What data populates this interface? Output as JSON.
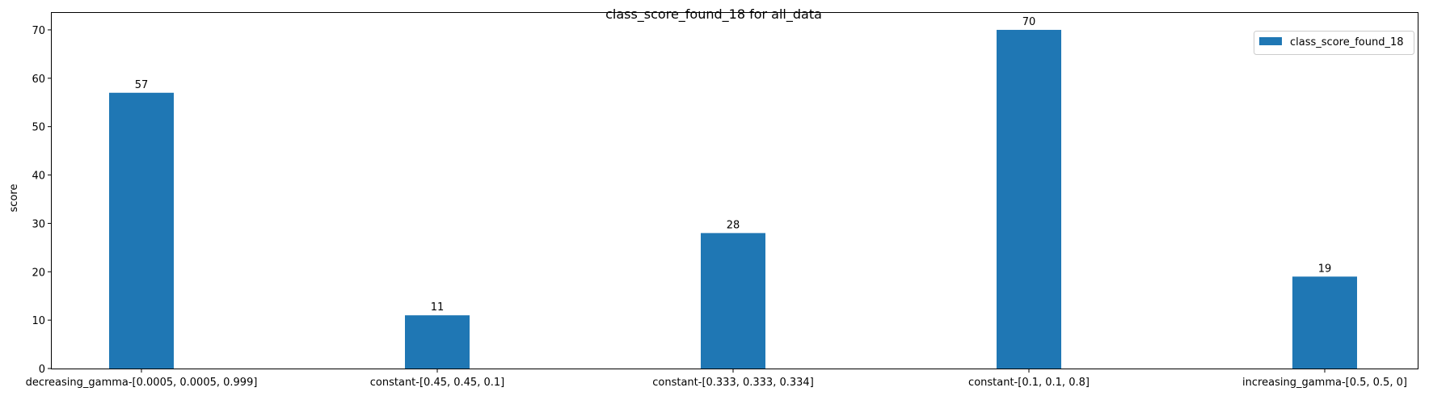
{
  "chart_data": {
    "type": "bar",
    "title": "class_score_found_18 for all_data",
    "xlabel": "",
    "ylabel": "score",
    "categories": [
      "decreasing_gamma-[0.0005, 0.0005, 0.999]",
      "constant-[0.45, 0.45, 0.1]",
      "constant-[0.333, 0.333, 0.334]",
      "constant-[0.1, 0.1, 0.8]",
      "increasing_gamma-[0.5, 0.5, 0]"
    ],
    "series": [
      {
        "name": "class_score_found_18",
        "values": [
          57,
          11,
          28,
          70,
          19
        ],
        "color": "#1f77b4"
      }
    ],
    "ylim": [
      0,
      73.5
    ],
    "yticks": [
      0,
      10,
      20,
      30,
      40,
      50,
      60,
      70
    ],
    "grid": false,
    "legend_position": "top-right",
    "data_labels": true
  }
}
